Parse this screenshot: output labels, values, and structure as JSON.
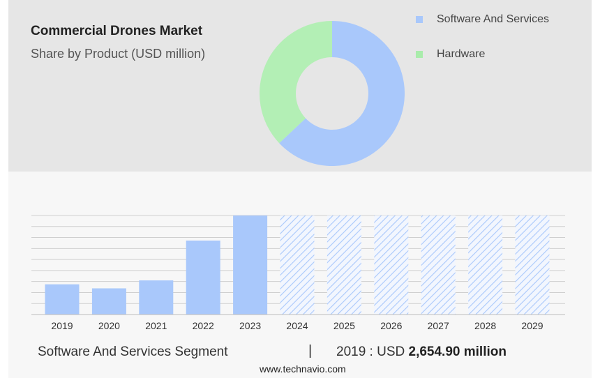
{
  "title": "Commercial Drones Market",
  "subtitle": "Share by Product (USD million)",
  "legend": [
    {
      "label": "Software And Services",
      "color": "#a9c8fb"
    },
    {
      "label": "Hardware",
      "color": "#a9ecab"
    }
  ],
  "chart_data": [
    {
      "type": "pie",
      "donut": true,
      "categories": [
        "Software And Services",
        "Hardware"
      ],
      "values": [
        63,
        37
      ],
      "colors": [
        "#a9c8fb",
        "#b3efb5"
      ]
    },
    {
      "type": "bar",
      "categories": [
        "2019",
        "2020",
        "2021",
        "2022",
        "2023",
        "2024",
        "2025",
        "2026",
        "2027",
        "2028",
        "2029"
      ],
      "values": [
        2654.9,
        2300,
        3000,
        6500,
        8700,
        8700,
        8700,
        8700,
        8700,
        8700,
        8700
      ],
      "forecast_from": "2024",
      "grid": true,
      "bar_color": "#a9c8fb"
    }
  ],
  "footer": {
    "segment": "Software And Services Segment",
    "separator": "|",
    "year_label": "2019 : USD",
    "value": "2,654.90 million"
  },
  "site": "www.technavio.com"
}
